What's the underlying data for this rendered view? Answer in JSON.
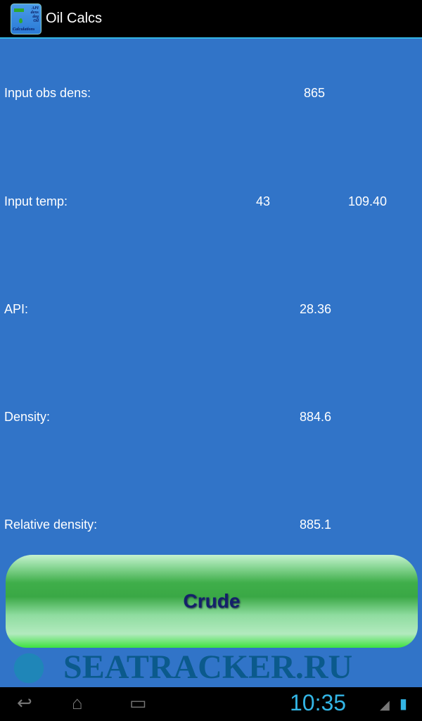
{
  "app": {
    "title": "Oil Calcs",
    "icon_text": [
      "API",
      "dens",
      "deg",
      "Oil",
      "Calculations"
    ]
  },
  "rows": [
    {
      "label": "Input obs dens:",
      "value": "865"
    },
    {
      "label": "Input temp:",
      "value": "43",
      "value2": "109.40"
    },
    {
      "label": "API:",
      "value": "28.36"
    },
    {
      "label": "Density:",
      "value": "884.6"
    },
    {
      "label": "Relative density:",
      "value": "885.1"
    }
  ],
  "button": {
    "label": "Crude",
    "color": "#3aa845"
  },
  "watermark": "SEATRACKER.RU",
  "statusbar": {
    "time": "10:35"
  },
  "colors": {
    "background": "#3174c8",
    "accent": "#33b5e5"
  }
}
